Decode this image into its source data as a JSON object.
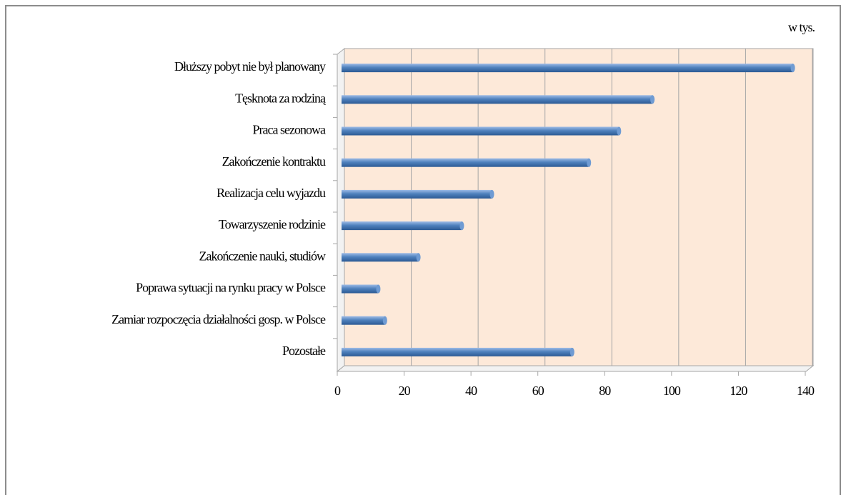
{
  "chart_data": {
    "type": "bar",
    "orientation": "horizontal",
    "unit_label": "w tys.",
    "categories": [
      "Dłuższy pobyt nie był planowany",
      "Tęsknota za rodziną",
      "Praca sezonowa",
      "Zakończenie kontraktu",
      "Realizacja celu wyjazdu",
      "Towarzyszenie rodzinie",
      "Zakończenie nauki, studiów",
      "Poprawa sytuacji na rynku pracy w Polsce",
      "Zamiar rozpoczęcia działalności gosp.  w Polsce",
      "Pozostałe"
    ],
    "values": [
      135,
      93,
      83,
      74,
      45,
      36,
      23,
      11,
      13,
      69
    ],
    "color": "#4f81bd",
    "xlim": [
      0,
      140
    ],
    "xticks": [
      0,
      20,
      40,
      60,
      80,
      100,
      120,
      140
    ],
    "grid": true
  }
}
